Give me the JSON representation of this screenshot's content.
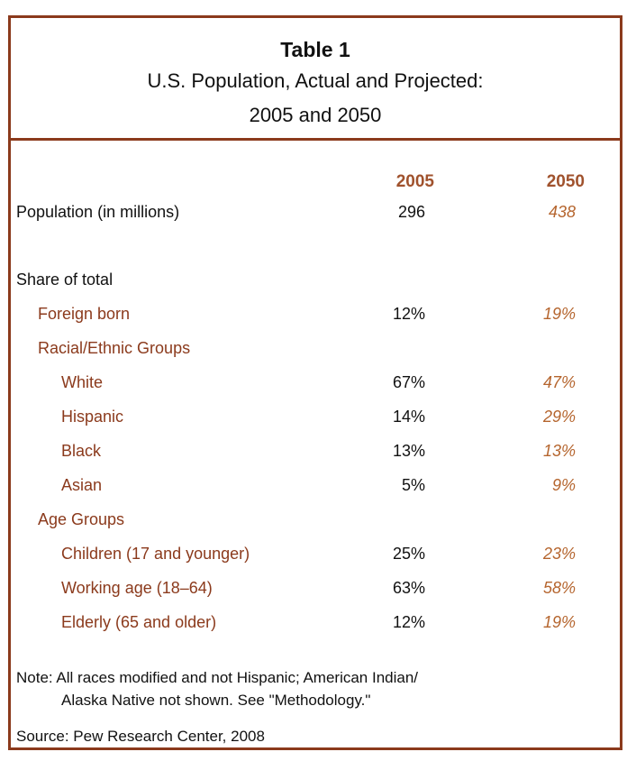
{
  "header": {
    "title": "Table 1",
    "subtitle_line1": "U.S. Population, Actual and Projected:",
    "subtitle_line2": "2005 and 2050"
  },
  "columns": [
    "2005",
    "2050"
  ],
  "rows": [
    {
      "label": "Population (in millions)",
      "v2005": "296",
      "v2050": "438"
    },
    {
      "label": "Share of total",
      "v2005": "",
      "v2050": ""
    },
    {
      "label": "Foreign born",
      "v2005": "12%",
      "v2050": "19%"
    },
    {
      "label": "Racial/Ethnic Groups",
      "v2005": "",
      "v2050": ""
    },
    {
      "label": "White",
      "v2005": "67%",
      "v2050": "47%"
    },
    {
      "label": "Hispanic",
      "v2005": "14%",
      "v2050": "29%"
    },
    {
      "label": "Black",
      "v2005": "13%",
      "v2050": "13%"
    },
    {
      "label": "Asian",
      "v2005": "5%",
      "v2050": "9%"
    },
    {
      "label": "Age Groups",
      "v2005": "",
      "v2050": ""
    },
    {
      "label": "Children (17 and younger)",
      "v2005": "25%",
      "v2050": "23%"
    },
    {
      "label": "Working age (18–64)",
      "v2005": "63%",
      "v2050": "58%"
    },
    {
      "label": "Elderly (65 and older)",
      "v2005": "12%",
      "v2050": "19%"
    }
  ],
  "note_line1": "Note: All races modified and not Hispanic; American Indian/",
  "note_line2": "Alaska Native not shown. See \"Methodology.\"",
  "source": "Source: Pew Research Center, 2008",
  "colors": {
    "border": "#8b3a1c",
    "header_accent": "#a0522d",
    "projected_values": "#b5652e",
    "category_labels": "#8b3a1c"
  }
}
